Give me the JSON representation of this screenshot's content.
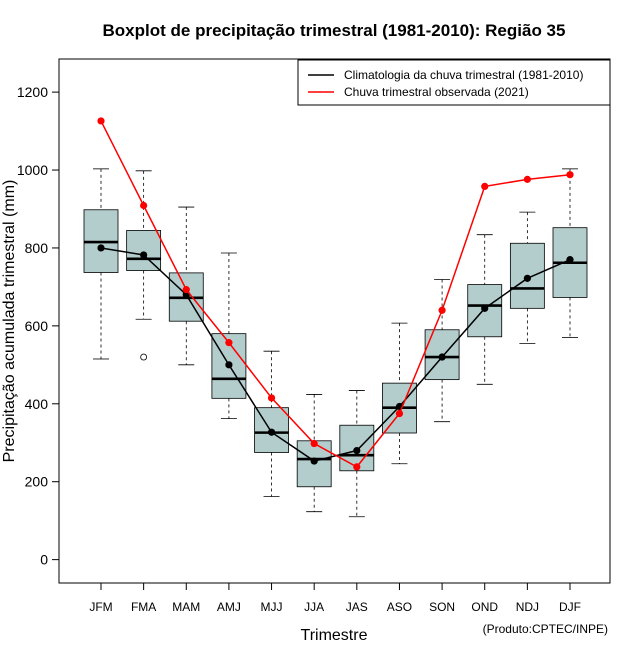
{
  "chart_data": {
    "type": "boxplot+line",
    "title": "Boxplot de precipitação trimestral (1981-2010): Região 35",
    "xlabel": "Trimestre",
    "ylabel": "Precipitação acumulada trimestral (mm)",
    "ylim": [
      -60,
      1285
    ],
    "yticks": [
      0,
      200,
      400,
      600,
      800,
      1000,
      1200
    ],
    "categories": [
      "JFM",
      "FMA",
      "MAM",
      "AMJ",
      "MJJ",
      "JJA",
      "JAS",
      "ASO",
      "SON",
      "OND",
      "NDJ",
      "DJF"
    ],
    "boxes": [
      {
        "min": 515,
        "q1": 737,
        "median": 815,
        "q3": 898,
        "max": 1003,
        "outliers": []
      },
      {
        "min": 617,
        "q1": 742,
        "median": 772,
        "q3": 845,
        "max": 998,
        "outliers": [
          520
        ]
      },
      {
        "min": 500,
        "q1": 612,
        "median": 672,
        "q3": 736,
        "max": 905,
        "outliers": []
      },
      {
        "min": 362,
        "q1": 414,
        "median": 464,
        "q3": 580,
        "max": 787,
        "outliers": []
      },
      {
        "min": 162,
        "q1": 275,
        "median": 326,
        "q3": 390,
        "max": 535,
        "outliers": []
      },
      {
        "min": 123,
        "q1": 187,
        "median": 258,
        "q3": 305,
        "max": 424,
        "outliers": []
      },
      {
        "min": 110,
        "q1": 228,
        "median": 268,
        "q3": 345,
        "max": 434,
        "outliers": []
      },
      {
        "min": 246,
        "q1": 325,
        "median": 390,
        "q3": 453,
        "max": 607,
        "outliers": []
      },
      {
        "min": 354,
        "q1": 462,
        "median": 520,
        "q3": 590,
        "max": 719,
        "outliers": []
      },
      {
        "min": 450,
        "q1": 572,
        "median": 652,
        "q3": 706,
        "max": 834,
        "outliers": []
      },
      {
        "min": 555,
        "q1": 645,
        "median": 696,
        "q3": 812,
        "max": 892,
        "outliers": []
      },
      {
        "min": 570,
        "q1": 673,
        "median": 762,
        "q3": 852,
        "max": 1003,
        "outliers": []
      }
    ],
    "series": [
      {
        "name": "Climatologia da chuva trimestral (1981-2010)",
        "color": "#000000",
        "values": [
          800,
          782,
          680,
          500,
          327,
          253,
          280,
          393,
          520,
          645,
          722,
          770
        ]
      },
      {
        "name": "Chuva trimestral observada (2021)",
        "color": "#ff0000",
        "values": [
          1126,
          909,
          693,
          557,
          415,
          298,
          238,
          375,
          640,
          958,
          976,
          988
        ]
      }
    ],
    "legend_position": "top-right",
    "box_fill": "#b3cdcd",
    "credit": "(Produto:CPTEC/INPE)"
  }
}
